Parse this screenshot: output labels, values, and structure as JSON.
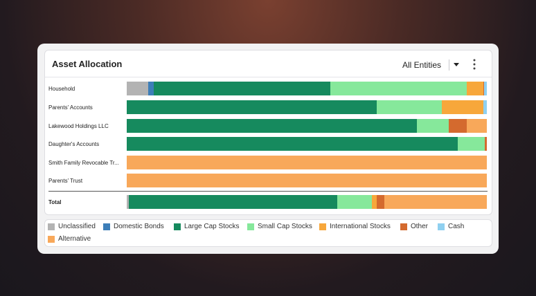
{
  "widget": {
    "title": "Asset Allocation",
    "filter_label": "All Entities"
  },
  "categories": [
    "Unclassified",
    "Domestic Bonds",
    "Large Cap Stocks",
    "Small Cap Stocks",
    "International Stocks",
    "Other",
    "Cash",
    "Alternative"
  ],
  "colors": {
    "Unclassified": "#b3b3b3",
    "Domestic Bonds": "#3d7eb8",
    "Large Cap Stocks": "#168a5e",
    "Small Cap Stocks": "#86e89b",
    "International Stocks": "#f7a73b",
    "Other": "#d46a2e",
    "Cash": "#8fd0f0",
    "Alternative": "#f8a85a"
  },
  "legend": {
    "unclassified": "Unclassified",
    "domestic_bonds": "Domestic Bonds",
    "large_cap": "Large Cap Stocks",
    "small_cap": "Small Cap Stocks",
    "international": "International Stocks",
    "other": "Other",
    "cash": "Cash",
    "alternative": "Alternative"
  },
  "chart_data": {
    "type": "bar",
    "orientation": "horizontal-stacked-100",
    "categories": [
      "Household",
      "Parents' Accounts",
      "Lakewood Holdings LLC",
      "Daughter's Accounts",
      "Smith Family Revocable Tr...",
      "Parents' Trust",
      "Total"
    ],
    "series": [
      {
        "name": "Unclassified",
        "values": [
          6,
          0,
          0,
          0,
          0,
          0,
          0.5
        ]
      },
      {
        "name": "Domestic Bonds",
        "values": [
          1.5,
          0,
          0,
          0,
          0,
          0,
          0
        ]
      },
      {
        "name": "Large Cap Stocks",
        "values": [
          49,
          69.5,
          80.5,
          92,
          0,
          0,
          58
        ]
      },
      {
        "name": "Small Cap Stocks",
        "values": [
          38,
          18,
          9,
          7.5,
          0,
          0,
          9.5
        ]
      },
      {
        "name": "International Stocks",
        "values": [
          4.5,
          11.5,
          0,
          0,
          0,
          0,
          1.5
        ]
      },
      {
        "name": "Other",
        "values": [
          0.3,
          0,
          5,
          0.5,
          0,
          0,
          2
        ]
      },
      {
        "name": "Cash",
        "values": [
          0.7,
          1,
          0,
          0,
          0,
          0,
          0
        ]
      },
      {
        "name": "Alternative",
        "values": [
          0,
          0,
          5.5,
          0,
          100,
          100,
          28.5
        ]
      }
    ],
    "xlim": [
      0,
      100
    ]
  }
}
